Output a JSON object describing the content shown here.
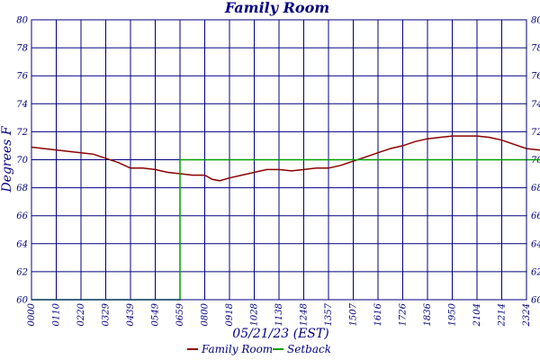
{
  "chart_data": {
    "type": "line",
    "title": "Family Room",
    "xlabel": "05/21/23 (EST)",
    "ylabel": "Degrees F",
    "ylim": [
      60,
      80
    ],
    "y_ticks": [
      60,
      62,
      64,
      66,
      68,
      70,
      72,
      74,
      76,
      78,
      80
    ],
    "x_tick_labels": [
      "0000",
      "0110",
      "0220",
      "0329",
      "0439",
      "0549",
      "0659",
      "0800",
      "0918",
      "1028",
      "1138",
      "1248",
      "1357",
      "1507",
      "1616",
      "1726",
      "1836",
      "1950",
      "2104",
      "2214",
      "2324"
    ],
    "grid": true,
    "legend_position": "bottom-center",
    "series": [
      {
        "name": "Family Room",
        "color": "#8b0000",
        "points": [
          [
            0,
            70.9
          ],
          [
            0.5,
            70.8
          ],
          [
            1,
            70.7
          ],
          [
            1.5,
            70.6
          ],
          [
            2,
            70.5
          ],
          [
            2.5,
            70.4
          ],
          [
            3,
            70.1
          ],
          [
            3.5,
            69.8
          ],
          [
            4,
            69.4
          ],
          [
            4.5,
            69.4
          ],
          [
            5,
            69.3
          ],
          [
            5.5,
            69.1
          ],
          [
            6,
            69.0
          ],
          [
            6.5,
            68.9
          ],
          [
            7,
            68.9
          ],
          [
            7.3,
            68.6
          ],
          [
            7.6,
            68.5
          ],
          [
            8,
            68.7
          ],
          [
            8.5,
            68.9
          ],
          [
            9,
            69.1
          ],
          [
            9.5,
            69.3
          ],
          [
            10,
            69.3
          ],
          [
            10.5,
            69.2
          ],
          [
            11,
            69.3
          ],
          [
            11.5,
            69.4
          ],
          [
            12,
            69.4
          ],
          [
            12.5,
            69.6
          ],
          [
            13,
            69.9
          ],
          [
            13.5,
            70.2
          ],
          [
            14,
            70.5
          ],
          [
            14.5,
            70.8
          ],
          [
            15,
            71.0
          ],
          [
            15.5,
            71.3
          ],
          [
            16,
            71.5
          ],
          [
            16.5,
            71.6
          ],
          [
            17,
            71.7
          ],
          [
            17.5,
            71.7
          ],
          [
            18,
            71.7
          ],
          [
            18.5,
            71.6
          ],
          [
            19,
            71.4
          ],
          [
            19.5,
            71.1
          ],
          [
            20,
            70.8
          ],
          [
            20.5,
            70.7
          ],
          [
            21,
            70.6
          ],
          [
            21.5,
            70.3
          ]
        ]
      },
      {
        "name": "Setback",
        "color": "#00a000",
        "points": [
          [
            0,
            60
          ],
          [
            6.0,
            60
          ],
          [
            6.0,
            70
          ],
          [
            21.5,
            70
          ]
        ]
      }
    ]
  }
}
